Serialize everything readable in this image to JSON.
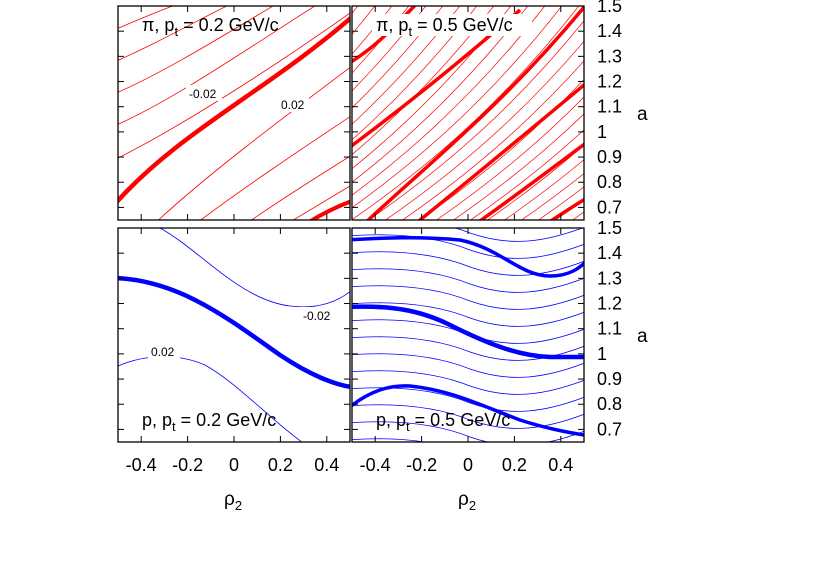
{
  "chart_data": {
    "type": "contour",
    "colors": {
      "pi": "#ff0000",
      "p": "#0000ff"
    },
    "x_axis": {
      "label": "ρ2",
      "range": [
        -0.5,
        0.5
      ],
      "tick_values": [
        -0.4,
        -0.2,
        0,
        0.2,
        0.4
      ],
      "tick_labels": [
        "-0.4",
        "-0.2",
        "0",
        "0.2",
        "0.4"
      ]
    },
    "y_axis": {
      "label": "a",
      "range": [
        0.65,
        1.5
      ],
      "tick_values": [
        0.7,
        0.8,
        0.9,
        1.0,
        1.1,
        1.2,
        1.3,
        1.4,
        1.5
      ],
      "tick_labels": [
        "0.7",
        "0.8",
        "0.9",
        "1",
        "1.1",
        "1.2",
        "1.3",
        "1.4",
        "1.5"
      ]
    },
    "panels": [
      {
        "id": "pi-0.2",
        "label_main": "π, p",
        "label_sub": "t",
        "label_rest": " = 0.2 GeV/c",
        "color": "#ff0000",
        "contour_labels": [
          "-0.02",
          "0.02"
        ]
      },
      {
        "id": "pi-0.5",
        "label_main": "π, p",
        "label_sub": "t",
        "label_rest": " = 0.5 GeV/c",
        "color": "#ff0000",
        "contour_labels": []
      },
      {
        "id": "p-0.2",
        "label_main": "p, p",
        "label_sub": "t",
        "label_rest": " = 0.2 GeV/c",
        "color": "#0000ff",
        "contour_labels": [
          "0.02",
          "-0.02"
        ]
      },
      {
        "id": "p-0.5",
        "label_main": "p, p",
        "label_sub": "t",
        "label_rest": " = 0.5 GeV/c",
        "color": "#0000ff",
        "contour_labels": []
      }
    ]
  }
}
